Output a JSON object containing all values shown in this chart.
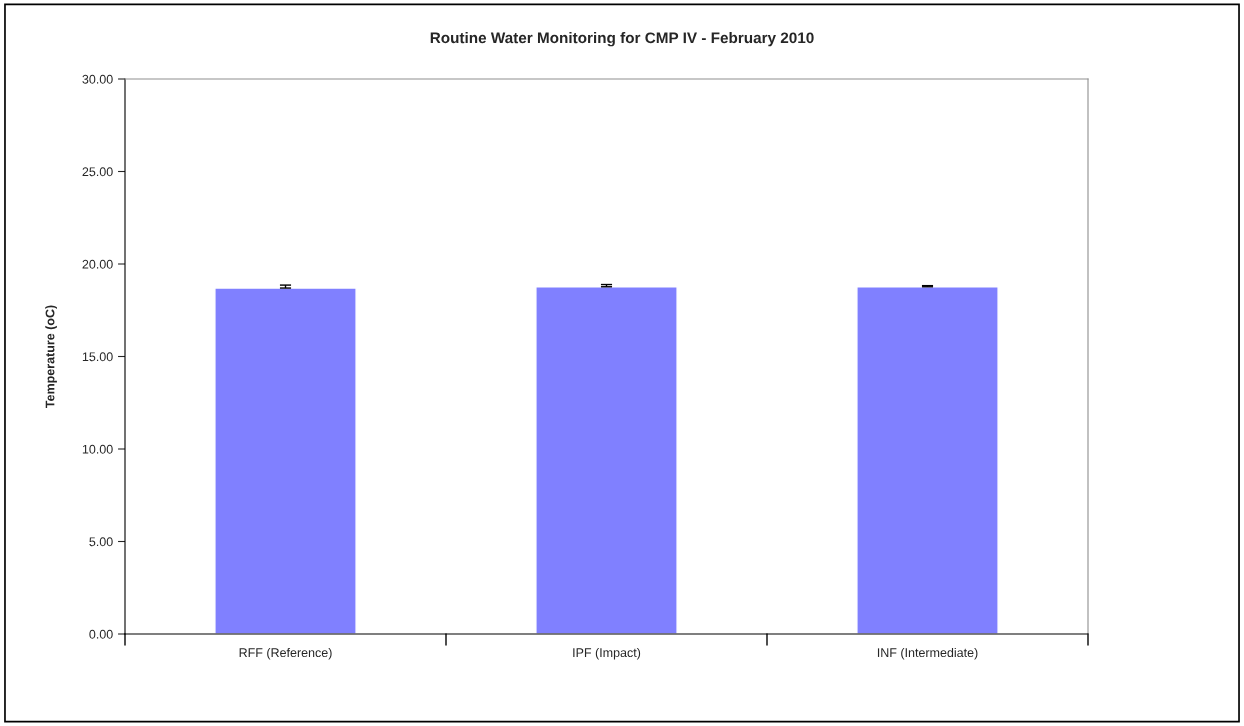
{
  "chart_data": {
    "type": "bar",
    "title": "Routine Water Monitoring for CMP IV - February 2010",
    "ylabel": "Temperature (oC)",
    "categories": [
      "RFF (Reference)",
      "IPF (Impact)",
      "INF (Intermediate)"
    ],
    "values": [
      18.7,
      18.77,
      18.77
    ],
    "errors": [
      [
        18.7,
        18.86
      ],
      [
        18.77,
        18.89
      ],
      [
        18.77,
        18.83
      ]
    ],
    "color": "#8080ff",
    "ylim": [
      0,
      30
    ],
    "yticks": [
      {
        "value": 0,
        "label": "0.00"
      },
      {
        "value": 5,
        "label": "5.00"
      },
      {
        "value": 10,
        "label": "10.00"
      },
      {
        "value": 15,
        "label": "15.00"
      },
      {
        "value": 20,
        "label": "20.00"
      },
      {
        "value": 25,
        "label": "25.00"
      },
      {
        "value": 30,
        "label": "30.00"
      }
    ],
    "grid": false,
    "legend": false
  }
}
